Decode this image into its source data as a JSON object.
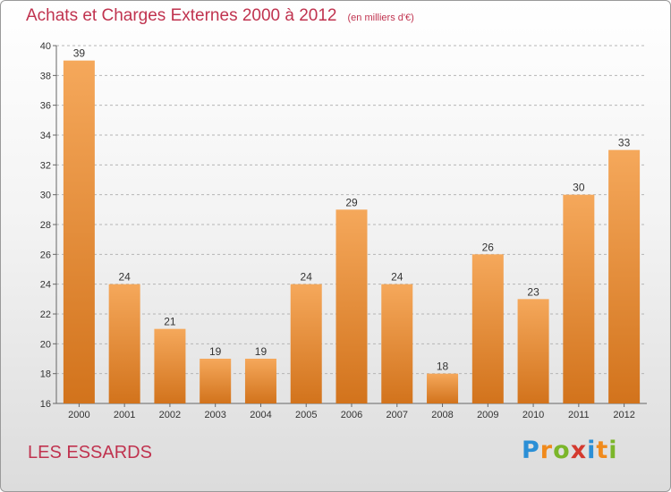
{
  "title": "Achats et Charges Externes 2000 à 2012",
  "subtitle": "(en milliers d'€)",
  "commune": "LES ESSARDS",
  "brand": {
    "letters": [
      "P",
      "r",
      "o",
      "x",
      "i",
      "t",
      "i"
    ],
    "colors": [
      "#2b8fd6",
      "#f08a1c",
      "#7bb62a",
      "#d43a2f",
      "#2b8fd6",
      "#f08a1c",
      "#7bb62a"
    ]
  },
  "colors": {
    "bar_top": "#f5a85b",
    "bar_bottom": "#d2731c",
    "text_accent": "#c0334f",
    "grid": "#b5b5b5"
  },
  "chart_data": {
    "type": "bar",
    "categories": [
      "2000",
      "2001",
      "2002",
      "2003",
      "2004",
      "2005",
      "2006",
      "2007",
      "2008",
      "2009",
      "2010",
      "2011",
      "2012"
    ],
    "values": [
      39,
      24,
      21,
      19,
      19,
      24,
      29,
      24,
      18,
      26,
      23,
      30,
      33
    ],
    "ylim": [
      16,
      40
    ],
    "yticks": [
      16,
      18,
      20,
      22,
      24,
      26,
      28,
      30,
      32,
      34,
      36,
      38,
      40
    ],
    "grid": "horizontal dashed",
    "legend": "none"
  }
}
